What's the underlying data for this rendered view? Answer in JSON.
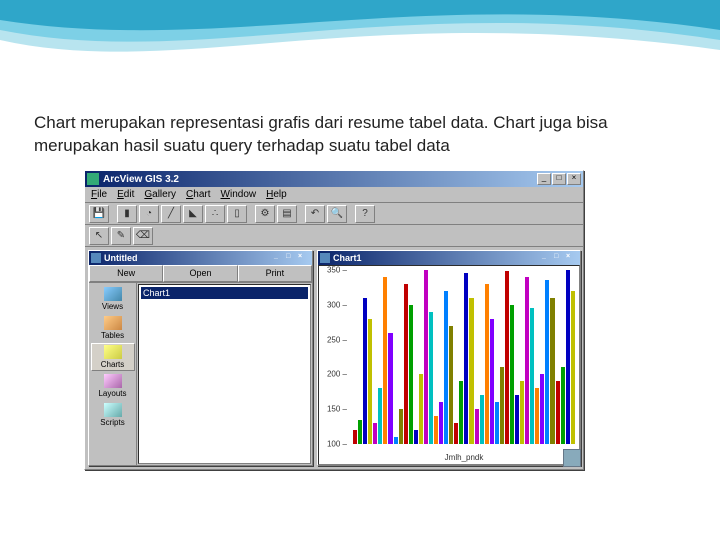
{
  "slide": {
    "description": "Chart merupakan representasi grafis dari resume tabel data. Chart juga bisa merupakan hasil suatu query terhadap suatu tabel data"
  },
  "decor": {
    "wave_colors": [
      "#2fa6c9",
      "#7dd0e6",
      "#b8e4ef"
    ]
  },
  "app": {
    "title": "ArcView GIS 3.2",
    "menus": [
      "File",
      "Edit",
      "Gallery",
      "Chart",
      "Window",
      "Help"
    ],
    "window_buttons": [
      "_",
      "□",
      "×"
    ]
  },
  "project": {
    "title": "Untitled",
    "toolbar_buttons": [
      "New",
      "Open",
      "Print"
    ],
    "sidebar": [
      {
        "label": "Views"
      },
      {
        "label": "Tables"
      },
      {
        "label": "Charts"
      },
      {
        "label": "Layouts"
      },
      {
        "label": "Scripts"
      }
    ],
    "selected_index": 2,
    "list_items": [
      "Chart1"
    ]
  },
  "chart_window": {
    "title": "Chart1",
    "type": "bar",
    "ylim": [
      100,
      350
    ],
    "yticks": [
      350,
      300,
      250,
      200,
      150,
      100
    ],
    "xlabel": "Jmlh_pndk",
    "background_color": "#ffffff",
    "bar_palette": [
      "#c00000",
      "#00a000",
      "#0000c0",
      "#c0c000",
      "#c000c0",
      "#00c0c0",
      "#ff8000",
      "#8000ff",
      "#0080ff",
      "#808000"
    ],
    "values": [
      120,
      135,
      310,
      280,
      130,
      180,
      340,
      260,
      110,
      150,
      330,
      300,
      120,
      200,
      350,
      290,
      140,
      160,
      320,
      270,
      130,
      190,
      345,
      310,
      150,
      170,
      330,
      280,
      160,
      210,
      348,
      300,
      170,
      190,
      340,
      295,
      180,
      200,
      335,
      310,
      190,
      210,
      350,
      320
    ]
  }
}
